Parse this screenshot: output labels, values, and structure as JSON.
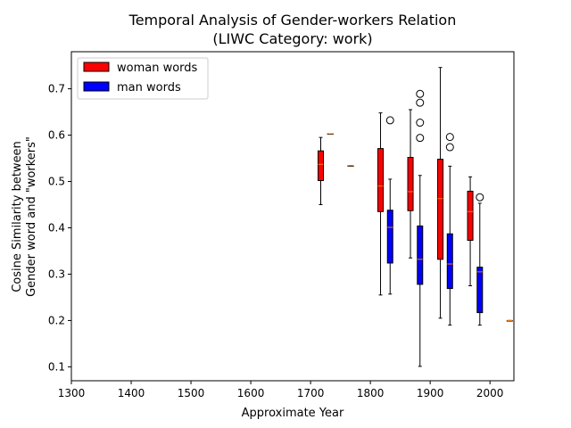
{
  "chart_data": {
    "type": "boxplot",
    "title": "Temporal Analysis of Gender-workers Relation",
    "subtitle": "(LIWC Category: work)",
    "xlabel": "Approximate Year",
    "ylabel_line1": "Cosine Similarity between",
    "ylabel_line2": "Gender word and \"workers\"",
    "xlim": [
      1300,
      2040
    ],
    "ylim": [
      0.07,
      0.78
    ],
    "xticks": [
      1300,
      1400,
      1500,
      1600,
      1700,
      1800,
      1900,
      2000
    ],
    "yticks": [
      0.1,
      0.2,
      0.3,
      0.4,
      0.5,
      0.6,
      0.7
    ],
    "grid": false,
    "legend_position": "upper-left",
    "series": [
      {
        "name": "woman words",
        "color": "#ff0000",
        "boxes": [
          {
            "x": 1717,
            "whislo": 0.45,
            "q1": 0.502,
            "med": 0.537,
            "q3": 0.566,
            "whishi": 0.595,
            "fliers": []
          },
          {
            "x": 1733,
            "whislo": 0.603,
            "q1": 0.603,
            "med": 0.603,
            "q3": 0.603,
            "whishi": 0.603,
            "fliers": []
          },
          {
            "x": 1817,
            "whislo": 0.255,
            "q1": 0.435,
            "med": 0.49,
            "q3": 0.571,
            "whishi": 0.648,
            "fliers": []
          },
          {
            "x": 1867,
            "whislo": 0.335,
            "q1": 0.437,
            "med": 0.478,
            "q3": 0.552,
            "whishi": 0.655,
            "fliers": []
          },
          {
            "x": 1917,
            "whislo": 0.205,
            "q1": 0.332,
            "med": 0.463,
            "q3": 0.548,
            "whishi": 0.746,
            "fliers": []
          },
          {
            "x": 1967,
            "whislo": 0.275,
            "q1": 0.373,
            "med": 0.435,
            "q3": 0.479,
            "whishi": 0.51,
            "fliers": []
          }
        ]
      },
      {
        "name": "man words",
        "color": "#0000ff",
        "boxes": [
          {
            "x": 1767,
            "whislo": 0.534,
            "q1": 0.534,
            "med": 0.534,
            "q3": 0.534,
            "whishi": 0.534,
            "fliers": []
          },
          {
            "x": 1833,
            "whislo": 0.257,
            "q1": 0.324,
            "med": 0.401,
            "q3": 0.438,
            "whishi": 0.505,
            "fliers": [
              0.632
            ]
          },
          {
            "x": 1883,
            "whislo": 0.101,
            "q1": 0.278,
            "med": 0.332,
            "q3": 0.404,
            "whishi": 0.513,
            "fliers": [
              0.594,
              0.627,
              0.67,
              0.689
            ]
          },
          {
            "x": 1933,
            "whislo": 0.19,
            "q1": 0.269,
            "med": 0.322,
            "q3": 0.387,
            "whishi": 0.533,
            "fliers": [
              0.574,
              0.596
            ]
          },
          {
            "x": 1983,
            "whislo": 0.19,
            "q1": 0.217,
            "med": 0.305,
            "q3": 0.315,
            "whishi": 0.453,
            "fliers": [
              0.466
            ]
          },
          {
            "x": 2033,
            "whislo": 0.2,
            "q1": 0.2,
            "med": 0.2,
            "q3": 0.2,
            "whishi": 0.2,
            "fliers": []
          }
        ]
      }
    ],
    "median_color": "#ff7f0e"
  }
}
